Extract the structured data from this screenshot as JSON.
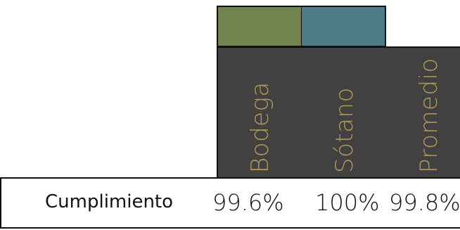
{
  "legend": {
    "swatches": [
      {
        "name": "bodega-swatch",
        "color": "#71834f"
      },
      {
        "name": "sotano-swatch",
        "color": "#4e7b86"
      }
    ]
  },
  "table": {
    "header_bg": "#414141",
    "header_text_color": "#b19a55",
    "columns": [
      "Bodega",
      "Sótano",
      "Promedio"
    ],
    "rows": [
      {
        "label": "Cumplimiento",
        "values": [
          "99.6%",
          "100%",
          "99.8%"
        ]
      }
    ]
  }
}
